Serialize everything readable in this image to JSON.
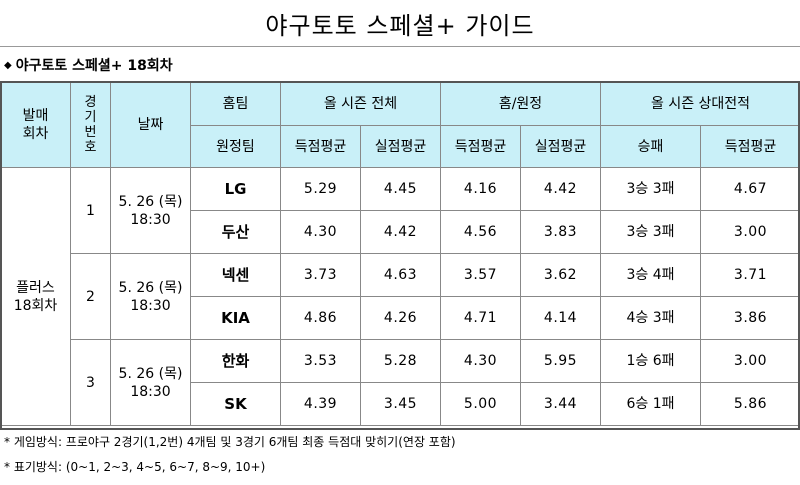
{
  "page_title": "야구토토 스페셜+ 가이드",
  "subtitle": {
    "bullet_icon": "diamond-bullet",
    "text": "야구토토 스페셜+ 18회차"
  },
  "table": {
    "headers": {
      "round": "발매\n회차",
      "game_no": "경\n기\n번\n호",
      "date": "날짜",
      "home_team": "홈팀",
      "away_team": "원정팀",
      "season_all": "올 시즌 전체",
      "home_away": "홈/원정",
      "head_to_head": "올 시즌 상대전적",
      "avg_scored": "득점평균",
      "avg_allowed": "실점평균",
      "win_loss": "승패"
    },
    "round_label": "플러스\n18회차",
    "games": [
      {
        "no": "1",
        "date": "5. 26 (목)\n18:30",
        "teams": [
          {
            "name": "LG",
            "season_scored": "5.29",
            "season_allowed": "4.45",
            "ha_scored": "4.16",
            "ha_allowed": "4.42",
            "record": "3승 3패",
            "h2h_scored": "4.67"
          },
          {
            "name": "두산",
            "season_scored": "4.30",
            "season_allowed": "4.42",
            "ha_scored": "4.56",
            "ha_allowed": "3.83",
            "record": "3승 3패",
            "h2h_scored": "3.00"
          }
        ]
      },
      {
        "no": "2",
        "date": "5. 26 (목)\n18:30",
        "teams": [
          {
            "name": "넥센",
            "season_scored": "3.73",
            "season_allowed": "4.63",
            "ha_scored": "3.57",
            "ha_allowed": "3.62",
            "record": "3승 4패",
            "h2h_scored": "3.71"
          },
          {
            "name": "KIA",
            "season_scored": "4.86",
            "season_allowed": "4.26",
            "ha_scored": "4.71",
            "ha_allowed": "4.14",
            "record": "4승 3패",
            "h2h_scored": "3.86"
          }
        ]
      },
      {
        "no": "3",
        "date": "5. 26 (목)\n18:30",
        "teams": [
          {
            "name": "한화",
            "season_scored": "3.53",
            "season_allowed": "5.28",
            "ha_scored": "4.30",
            "ha_allowed": "5.95",
            "record": "1승 6패",
            "h2h_scored": "3.00"
          },
          {
            "name": "SK",
            "season_scored": "4.39",
            "season_allowed": "3.45",
            "ha_scored": "5.00",
            "ha_allowed": "3.44",
            "record": "6승 1패",
            "h2h_scored": "5.86"
          }
        ]
      }
    ]
  },
  "notes": [
    "* 게임방식: 프로야구 2경기(1,2번) 4개팀 및 3경기 6개팀 최종 득점대 맞히기(연장 포함)",
    "* 표기방식: (0~1, 2~3, 4~5, 6~7, 8~9, 10+)"
  ],
  "colors": {
    "header_bg": "#c9f0f8",
    "border": "#888888"
  }
}
